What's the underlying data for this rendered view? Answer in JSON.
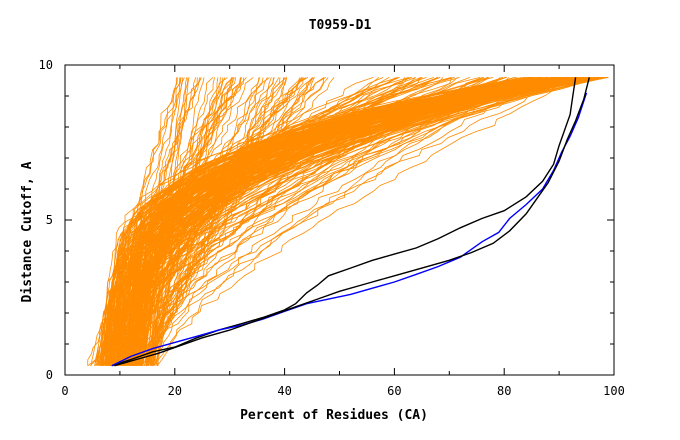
{
  "chart_data": {
    "type": "line",
    "title": "T0959-D1",
    "xlabel": "Percent of Residues (CA)",
    "ylabel": "Distance Cutoff, A",
    "xlim": [
      0,
      100
    ],
    "ylim": [
      0,
      10
    ],
    "x_ticks": [
      0,
      20,
      40,
      60,
      80,
      100
    ],
    "y_ticks": [
      0,
      5,
      10
    ],
    "grid": false,
    "legend": "none",
    "colors": {
      "background_models": "#ff8c00",
      "highlight_black": "#000000",
      "highlight_blue": "#0000ff"
    },
    "series": [
      {
        "color": "#000000",
        "points": [
          [
            8.5,
            0.3
          ],
          [
            12,
            0.5
          ],
          [
            16,
            0.75
          ],
          [
            20,
            0.9
          ],
          [
            24,
            1.2
          ],
          [
            28,
            1.45
          ],
          [
            32,
            1.65
          ],
          [
            36,
            1.85
          ],
          [
            40,
            2.1
          ],
          [
            42,
            2.3
          ],
          [
            44,
            2.65
          ],
          [
            46,
            2.9
          ],
          [
            48,
            3.2
          ],
          [
            52,
            3.45
          ],
          [
            56,
            3.7
          ],
          [
            60,
            3.9
          ],
          [
            64,
            4.1
          ],
          [
            68,
            4.4
          ],
          [
            72,
            4.75
          ],
          [
            76,
            5.05
          ],
          [
            80,
            5.3
          ],
          [
            84,
            5.75
          ],
          [
            87,
            6.25
          ],
          [
            89,
            6.8
          ],
          [
            90,
            7.4
          ],
          [
            91,
            7.9
          ],
          [
            92,
            8.4
          ],
          [
            92.5,
            9.0
          ],
          [
            93,
            9.6
          ]
        ]
      },
      {
        "color": "#0000ff",
        "points": [
          [
            8.5,
            0.3
          ],
          [
            12,
            0.6
          ],
          [
            16,
            0.85
          ],
          [
            20,
            1.05
          ],
          [
            24,
            1.25
          ],
          [
            28,
            1.45
          ],
          [
            32,
            1.6
          ],
          [
            36,
            1.8
          ],
          [
            40,
            2.05
          ],
          [
            44,
            2.3
          ],
          [
            48,
            2.45
          ],
          [
            52,
            2.6
          ],
          [
            56,
            2.8
          ],
          [
            60,
            3.0
          ],
          [
            64,
            3.25
          ],
          [
            68,
            3.5
          ],
          [
            72,
            3.8
          ],
          [
            76,
            4.3
          ],
          [
            79,
            4.6
          ],
          [
            81,
            5.05
          ],
          [
            84,
            5.5
          ],
          [
            87,
            6.0
          ],
          [
            89,
            6.6
          ],
          [
            90.5,
            7.2
          ],
          [
            92,
            7.7
          ],
          [
            93.5,
            8.3
          ],
          [
            95,
            9.1
          ]
        ]
      },
      {
        "color": "#000000",
        "points": [
          [
            9,
            0.3
          ],
          [
            13,
            0.5
          ],
          [
            17,
            0.7
          ],
          [
            21,
            0.95
          ],
          [
            25,
            1.2
          ],
          [
            30,
            1.45
          ],
          [
            34,
            1.7
          ],
          [
            38,
            1.95
          ],
          [
            42,
            2.2
          ],
          [
            46,
            2.45
          ],
          [
            50,
            2.7
          ],
          [
            55,
            2.95
          ],
          [
            60,
            3.2
          ],
          [
            65,
            3.45
          ],
          [
            70,
            3.7
          ],
          [
            74,
            3.95
          ],
          [
            78,
            4.25
          ],
          [
            81,
            4.65
          ],
          [
            84,
            5.2
          ],
          [
            86,
            5.7
          ],
          [
            88,
            6.2
          ],
          [
            90,
            6.9
          ],
          [
            91.5,
            7.6
          ],
          [
            93,
            8.2
          ],
          [
            94.5,
            8.9
          ],
          [
            95.5,
            9.6
          ]
        ]
      }
    ]
  }
}
